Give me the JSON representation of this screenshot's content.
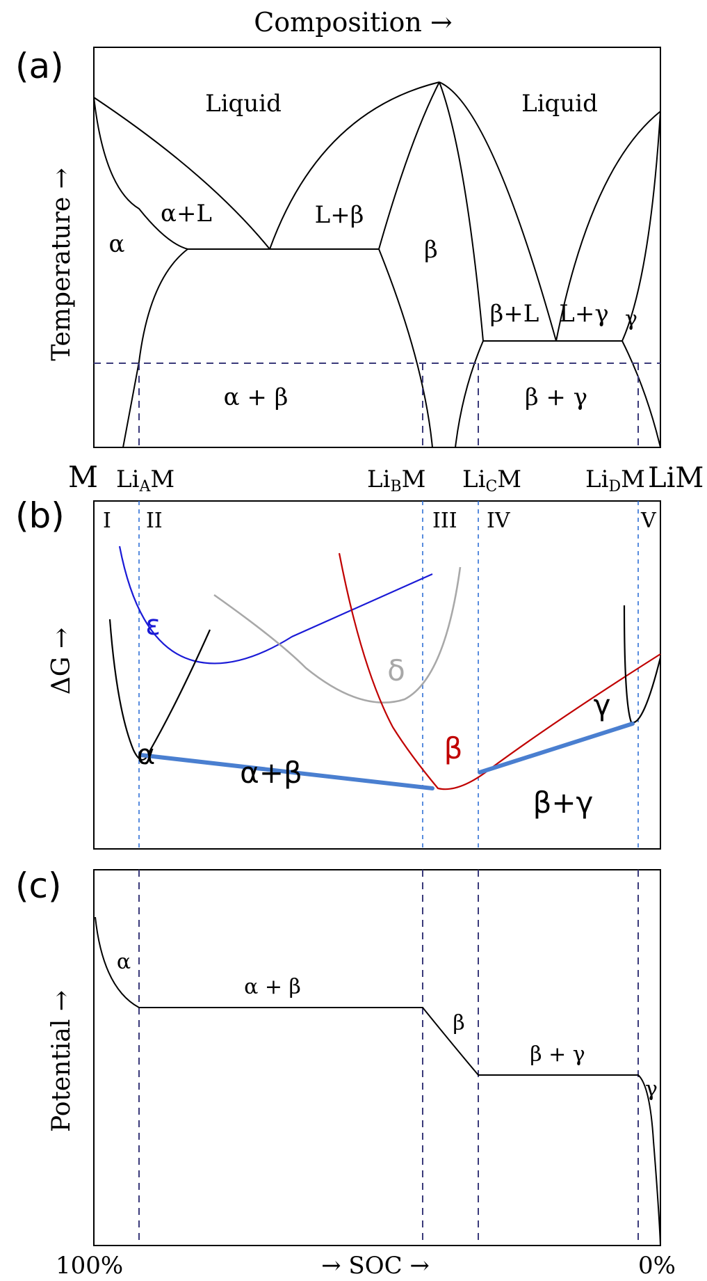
{
  "top_axis_label": "Composition →",
  "panel_a": {
    "panel_label": "(a)",
    "y_axis_label": "Temperature →",
    "regions": {
      "liquid_left": "Liquid",
      "liquid_right": "Liquid",
      "alpha": "α",
      "alpha_l": "α+L",
      "l_beta": "L+β",
      "beta": "β",
      "beta_l": "β+L",
      "l_gamma": "L+γ",
      "gamma": "γ",
      "alpha_beta": "α + β",
      "beta_gamma": "β + γ"
    },
    "compositions": {
      "m": "M",
      "liam_base": "Li",
      "liam_sub": "A",
      "libm_base": "Li",
      "libm_sub": "B",
      "licm_base": "Li",
      "licm_sub": "C",
      "lidm_base": "Li",
      "lidm_sub": "D",
      "suffix": "M",
      "lim": "LiM"
    }
  },
  "panel_b": {
    "panel_label": "(b)",
    "y_axis_label": "ΔG →",
    "roman": [
      "I",
      "II",
      "III",
      "IV",
      "V"
    ],
    "phases": {
      "epsilon": "ε",
      "delta": "δ",
      "alpha": "α",
      "beta": "β",
      "gamma": "γ",
      "alpha_beta": "α+β",
      "beta_gamma": "β+γ"
    },
    "colors": {
      "epsilon": "#1a1ad6",
      "delta": "#a8a8a8",
      "beta": "#c00000",
      "tangent": "#4a7fd0",
      "alpha_gamma": "#000000"
    }
  },
  "panel_c": {
    "panel_label": "(c)",
    "y_axis_label": "Potential →",
    "regions": {
      "alpha": "α",
      "alpha_beta": "α + β",
      "beta": "β",
      "beta_gamma": "β + γ",
      "gamma": "γ"
    },
    "x_axis": {
      "left": "100%",
      "center": "→ SOC →",
      "right": "0%"
    }
  }
}
